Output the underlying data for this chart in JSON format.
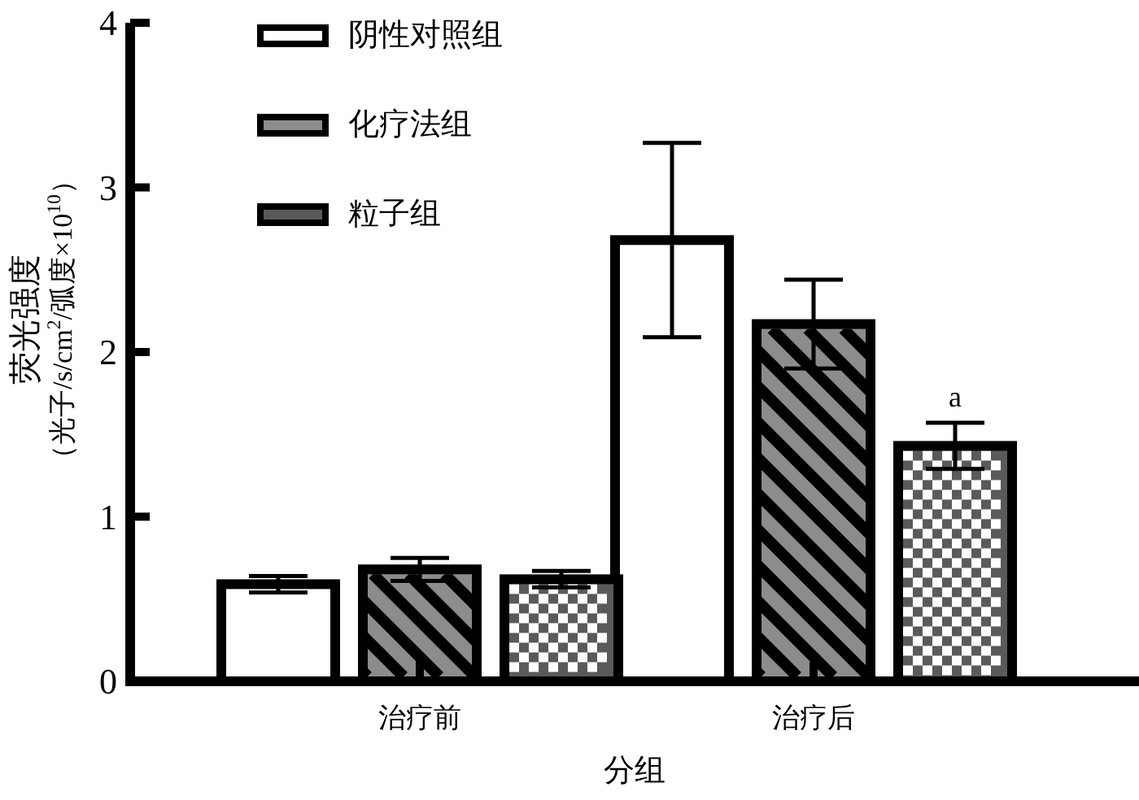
{
  "chart_data": {
    "type": "bar",
    "ylabel": "荧光强度（光子/s/cm$^{2}$/弧度×10$^{10}$）",
    "xlabel": "分组",
    "categories": [
      "治疗前",
      "治疗后"
    ],
    "series": [
      {
        "name": "阴性对照组",
        "color": "#ffffff",
        "values": [
          0.59,
          2.68
        ],
        "errors": [
          0.05,
          0.59
        ]
      },
      {
        "name": "化疗法组",
        "color": "#8c8c8c",
        "values": [
          0.68,
          2.17
        ],
        "errors": [
          0.07,
          0.27
        ]
      },
      {
        "name": "粒子组",
        "color": "#5a5a5a",
        "values": [
          0.62,
          1.43
        ],
        "errors": [
          0.05,
          0.14
        ]
      }
    ],
    "ylim": [
      0,
      4
    ],
    "yticks": [
      0,
      1,
      2,
      3,
      4
    ],
    "annotations": [
      "a"
    ],
    "legend": "top left",
    "grid": false
  }
}
